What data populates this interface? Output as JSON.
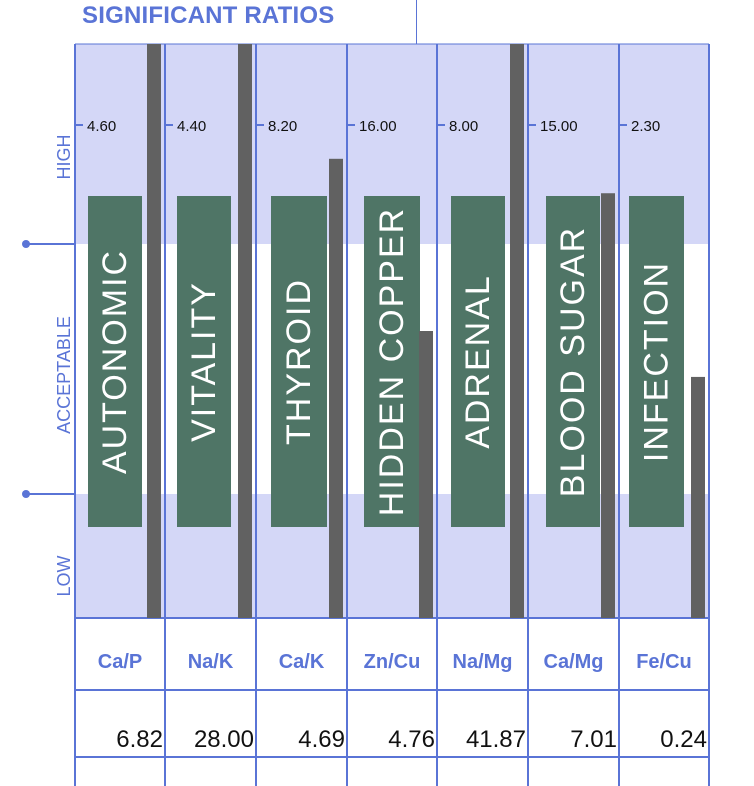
{
  "title": "SIGNIFICANT RATIOS",
  "colors": {
    "accent": "#5a74d6",
    "zone_high": "#d4d7f7",
    "zone_acceptable": "#ffffff",
    "zone_low": "#d4d7f7",
    "label_box": "#4f7566",
    "bar": "#616161"
  },
  "zones": {
    "high": "HIGH",
    "acceptable": "ACCEPTABLE",
    "low": "LOW"
  },
  "chart_data": {
    "type": "bar",
    "title": "SIGNIFICANT RATIOS",
    "categories": [
      "AUTONOMIC",
      "VITALITY",
      "THYROID",
      "HIDDEN COPPER",
      "ADRENAL",
      "BLOOD SUGAR",
      "INFECTION"
    ],
    "ratios": [
      "Ca/P",
      "Na/K",
      "Ca/K",
      "Zn/Cu",
      "Na/Mg",
      "Ca/Mg",
      "Fe/Cu"
    ],
    "high_thresholds": [
      "4.60",
      "4.40",
      "8.20",
      "16.00",
      "8.00",
      "15.00",
      "2.30"
    ],
    "values_display": [
      "6.82",
      "28.00",
      "4.69",
      "4.76",
      "41.87",
      "7.01",
      "0.24"
    ],
    "bar_level_fraction": [
      1.0,
      1.0,
      0.8,
      0.5,
      1.0,
      0.74,
      0.42
    ],
    "legend": "none",
    "grid": true
  }
}
